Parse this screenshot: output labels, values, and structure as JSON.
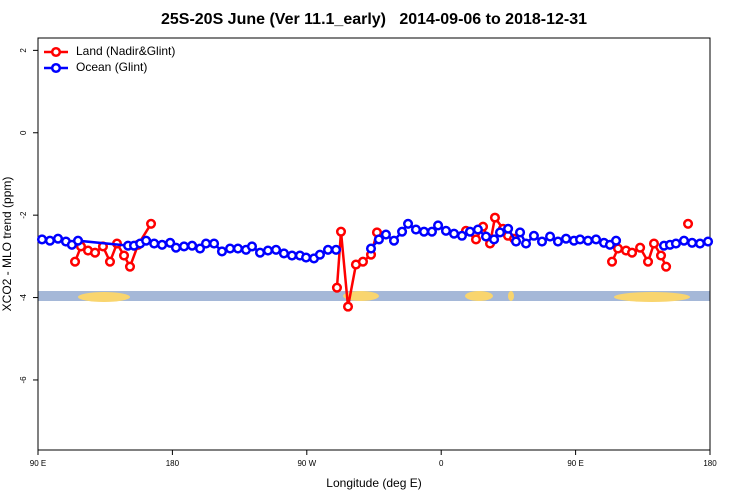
{
  "chart_data": {
    "type": "line",
    "title": "25S-20S June (Ver 11.1_early)   2014-09-06 to 2018-12-31",
    "x_label": "Longitude (deg E)",
    "y_label": "XCO2 - MLO trend (ppm)",
    "xlim": [
      90,
      540
    ],
    "ylim": [
      -7.7,
      2.3
    ],
    "xticks": [
      {
        "value": 90,
        "label": "90 E"
      },
      180,
      {
        "value": 270,
        "label": "90 W"
      },
      {
        "value": 360,
        "label": "0"
      },
      {
        "value": 450,
        "label": "90 E"
      },
      {
        "value": 540,
        "label": "180"
      }
    ],
    "yticks": [
      -6,
      -4,
      -2,
      0,
      2
    ],
    "legend": "top-left",
    "series": [
      {
        "name": "Land (Nadir&Glint)",
        "color": "#ff0000",
        "x": [
          114.8,
          118.8,
          123.5,
          128.2,
          133.5,
          138.2,
          142.9,
          147.6,
          151.6,
          157,
          165.7,
          null,
          290.2,
          292.9,
          297.6,
          302.9,
          307.6,
          313,
          317,
          null,
          376.6,
          383.3,
          388,
          392.7,
          396,
          401.4,
          404.7,
          408.8,
          null,
          474.4,
          478.4,
          483.8,
          487.8,
          493.2,
          498.5,
          502.5,
          507.2,
          510.6,
          null,
          525.3
        ],
        "values": [
          -3.13,
          -2.76,
          -2.86,
          -2.91,
          -2.76,
          -3.13,
          -2.69,
          -2.98,
          -3.25,
          -2.72,
          -2.21,
          null,
          -3.76,
          -2.4,
          -4.22,
          -3.2,
          -3.13,
          -2.96,
          -2.42,
          null,
          -2.38,
          -2.59,
          -2.28,
          -2.69,
          -2.06,
          -2.33,
          -2.5,
          -2.57,
          null,
          -3.13,
          -2.81,
          -2.86,
          -2.91,
          -2.79,
          -3.13,
          -2.69,
          -2.98,
          -3.25,
          null,
          -2.21
        ]
      },
      {
        "name": "Ocean (Glint)",
        "color": "#0000ff",
        "x": [
          92.7,
          98,
          103.4,
          108.7,
          112.7,
          116.8,
          150.3,
          154.3,
          158.4,
          162.4,
          167.8,
          173.1,
          178.5,
          182.4,
          187.8,
          193.2,
          198.5,
          202.5,
          207.9,
          213.2,
          218.6,
          223.9,
          229.3,
          233.3,
          238.7,
          244,
          249.4,
          254.7,
          260.1,
          265.4,
          269.5,
          274.8,
          278.8,
          284.2,
          289.6,
          null,
          313,
          318.3,
          323,
          328.4,
          333.8,
          337.8,
          343.1,
          348.5,
          353.8,
          357.9,
          363.2,
          368.6,
          373.9,
          379.3,
          384.6,
          390,
          395.4,
          399.4,
          404.8,
          410.1,
          412.8,
          416.8,
          422.1,
          427.5,
          432.9,
          438.2,
          443.6,
          448.9,
          453,
          458.3,
          463.7,
          469,
          473,
          477.1,
          null,
          509.2,
          513.2,
          517.2,
          522.6,
          528,
          533.3,
          538.7
        ],
        "values": [
          -2.59,
          -2.62,
          -2.57,
          -2.64,
          -2.72,
          -2.62,
          -2.74,
          -2.74,
          -2.69,
          -2.62,
          -2.69,
          -2.72,
          -2.67,
          -2.79,
          -2.76,
          -2.74,
          -2.81,
          -2.69,
          -2.69,
          -2.88,
          -2.81,
          -2.81,
          -2.84,
          -2.76,
          -2.91,
          -2.86,
          -2.84,
          -2.93,
          -2.98,
          -2.98,
          -3.03,
          -3.05,
          -2.96,
          -2.84,
          -2.84,
          null,
          -2.81,
          -2.59,
          -2.47,
          -2.62,
          -2.4,
          -2.21,
          -2.35,
          -2.4,
          -2.4,
          -2.25,
          -2.38,
          -2.45,
          -2.5,
          -2.4,
          -2.35,
          -2.52,
          -2.59,
          -2.42,
          -2.33,
          -2.64,
          -2.42,
          -2.69,
          -2.5,
          -2.64,
          -2.52,
          -2.64,
          -2.57,
          -2.62,
          -2.59,
          -2.62,
          -2.59,
          -2.67,
          -2.72,
          -2.62,
          null,
          -2.74,
          -2.72,
          -2.69,
          -2.62,
          -2.67,
          -2.69,
          -2.64
        ]
      }
    ]
  }
}
